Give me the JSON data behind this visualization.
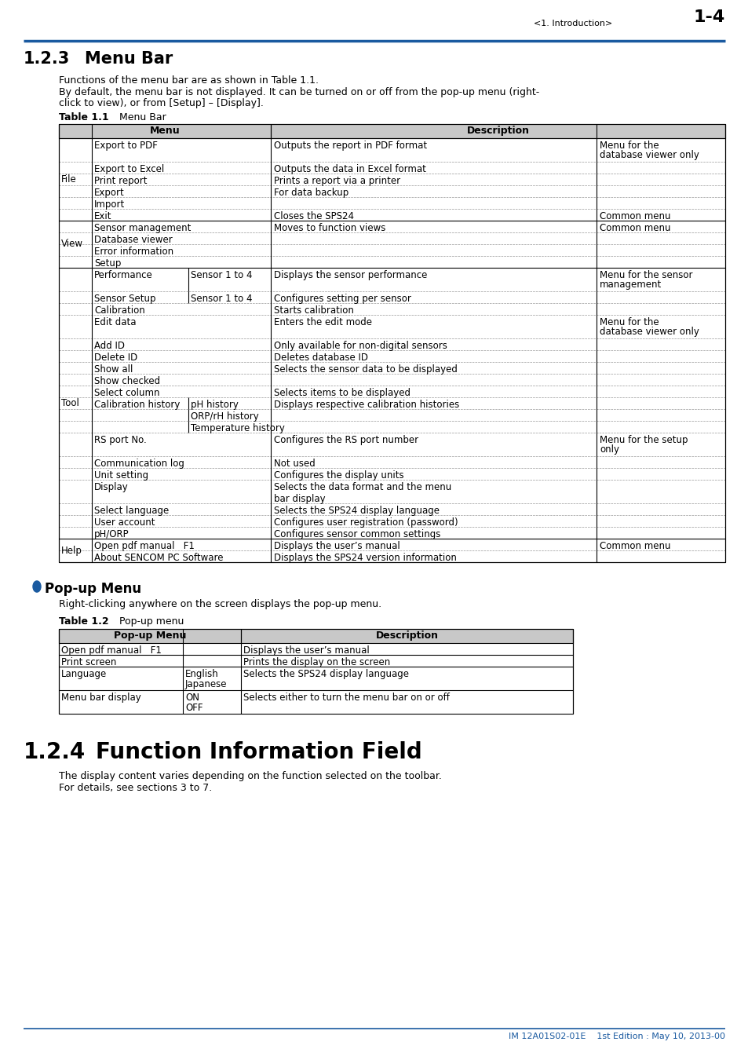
{
  "page_header_text": "<1. Introduction>",
  "page_number": "1-4",
  "blue_color": "#1a5aa0",
  "section1_title": "1.2.3",
  "section1_title2": "Menu Bar",
  "intro_text1": "Functions of the menu bar are as shown in Table 1.1.",
  "intro_text2a": "By default, the menu bar is not displayed. It can be turned on or off from the pop-up menu (right-",
  "intro_text2b": "click to view), or from [Setup] – [Display].",
  "table1_label": "Table 1.1",
  "table1_title": "Menu Bar",
  "popup_bullet": "●",
  "popup_section_title": "Pop-up Menu",
  "popup_intro": "Right-clicking anywhere on the screen displays the pop-up menu.",
  "table2_label": "Table 1.2",
  "table2_title": "Pop-up menu",
  "section2_num": "1.2.4",
  "section2_title": "Function Information Field",
  "section2_text1": "The display content varies depending on the function selected on the toolbar.",
  "section2_text2": "For details, see sections 3 to 7.",
  "footer_text": "IM 12A01S02-01E    1st Edition : May 10, 2013-00",
  "bg_color": "#ffffff",
  "header_gray": "#b0b0b0",
  "border_color": "#000000",
  "dashed_color": "#888888"
}
